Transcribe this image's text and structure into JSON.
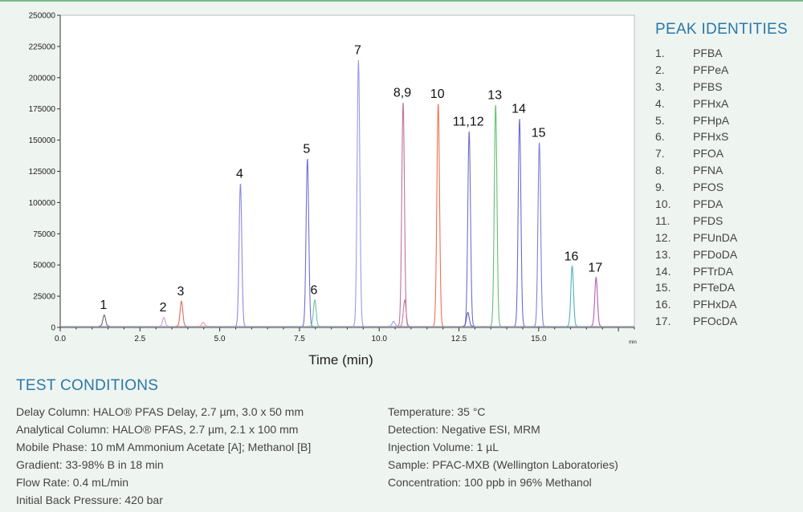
{
  "chart_data": {
    "type": "line",
    "xlabel": "Time (min)",
    "ylabel": "",
    "xlim": [
      0,
      18
    ],
    "ylim": [
      0,
      250000
    ],
    "x_ticks": [
      "0.0",
      "2.5",
      "5.0",
      "7.5",
      "10.0",
      "12.5",
      "15.0"
    ],
    "x_tick_values": [
      0,
      2.5,
      5,
      7.5,
      10,
      12.5,
      15
    ],
    "x_end_label": "min",
    "y_ticks": [
      "0",
      "25000",
      "50000",
      "75000",
      "100000",
      "125000",
      "150000",
      "175000",
      "200000",
      "225000",
      "250000"
    ],
    "y_tick_values": [
      0,
      25000,
      50000,
      75000,
      100000,
      125000,
      150000,
      175000,
      200000,
      225000,
      250000
    ],
    "grid": false,
    "peaks": [
      {
        "label": "1",
        "rt": 1.38,
        "height": 9000,
        "color": "#6a6a6a"
      },
      {
        "label": "2",
        "rt": 3.25,
        "height": 7000,
        "color": "#c9a0c9"
      },
      {
        "label": "3",
        "rt": 3.8,
        "height": 20000,
        "color": "#e06a5a"
      },
      {
        "label": "",
        "rt": 4.48,
        "height": 3000,
        "color": "#e8a0a0"
      },
      {
        "label": "4",
        "rt": 5.65,
        "height": 114000,
        "color": "#8a8ae0"
      },
      {
        "label": "5",
        "rt": 7.75,
        "height": 134000,
        "color": "#7070d0"
      },
      {
        "label": "6",
        "rt": 7.98,
        "height": 21000,
        "color": "#70c0b0"
      },
      {
        "label": "7",
        "rt": 9.35,
        "height": 213000,
        "color": "#9a9ae8"
      },
      {
        "label": "",
        "rt": 10.45,
        "height": 4000,
        "color": "#9aa0e8"
      },
      {
        "label": "8,9",
        "rt": 10.75,
        "height": 179000,
        "color": "#c070a0"
      },
      {
        "label": "",
        "rt": 10.8,
        "height": 21000,
        "color": "#c080a0"
      },
      {
        "label": "10",
        "rt": 11.85,
        "height": 178000,
        "color": "#f07050"
      },
      {
        "label": "11,12",
        "rt": 12.82,
        "height": 156000,
        "color": "#7070c8"
      },
      {
        "label": "",
        "rt": 12.78,
        "height": 11000,
        "color": "#6060c0"
      },
      {
        "label": "13",
        "rt": 13.65,
        "height": 177000,
        "color": "#60c070"
      },
      {
        "label": "14",
        "rt": 14.4,
        "height": 166000,
        "color": "#6a6ad8"
      },
      {
        "label": "15",
        "rt": 15.02,
        "height": 147000,
        "color": "#8080d8"
      },
      {
        "label": "16",
        "rt": 16.05,
        "height": 48000,
        "color": "#50b0c0"
      },
      {
        "label": "17",
        "rt": 16.8,
        "height": 39000,
        "color": "#b060b0"
      }
    ]
  },
  "peak_identities": {
    "title": "PEAK IDENTITIES",
    "items": [
      {
        "num": "1.",
        "name": "PFBA"
      },
      {
        "num": "2.",
        "name": "PFPeA"
      },
      {
        "num": "3.",
        "name": "PFBS"
      },
      {
        "num": "4.",
        "name": "PFHxA"
      },
      {
        "num": "5.",
        "name": "PFHpA"
      },
      {
        "num": "6.",
        "name": "PFHxS"
      },
      {
        "num": "7.",
        "name": "PFOA"
      },
      {
        "num": "8.",
        "name": "PFNA"
      },
      {
        "num": "9.",
        "name": "PFOS"
      },
      {
        "num": "10.",
        "name": "PFDA"
      },
      {
        "num": "11.",
        "name": "PFDS"
      },
      {
        "num": "12.",
        "name": "PFUnDA"
      },
      {
        "num": "13.",
        "name": "PFDoDA"
      },
      {
        "num": "14.",
        "name": "PFTrDA"
      },
      {
        "num": "15.",
        "name": "PFTeDA"
      },
      {
        "num": "16.",
        "name": "PFHxDA"
      },
      {
        "num": "17.",
        "name": "PFOcDA"
      }
    ]
  },
  "test_conditions": {
    "title": "TEST CONDITIONS",
    "left": [
      "Delay Column: HALO® PFAS Delay, 2.7 µm, 3.0 x 50 mm",
      "Analytical Column: HALO® PFAS, 2.7 µm, 2.1 x 100 mm",
      "Mobile Phase: 10 mM Ammonium Acetate [A]; Methanol [B]",
      "Gradient: 33-98% B in 18 min",
      "Flow Rate: 0.4 mL/min",
      "Initial Back Pressure:  420 bar"
    ],
    "right": [
      "Temperature: 35 °C",
      "Detection: Negative ESI, MRM",
      "Injection Volume: 1 µL",
      "Sample: PFAC-MXB (Wellington Laboratories)",
      "Concentration: 100 ppb in 96% Methanol"
    ]
  }
}
